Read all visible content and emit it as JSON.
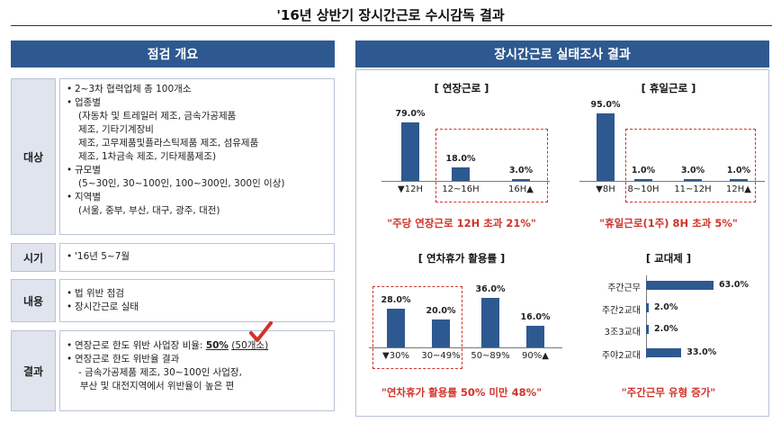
{
  "title": "'16년 상반기 장시간근로 수시감독 결과",
  "overview": {
    "header": "점검 개요",
    "sections": [
      {
        "label": "대상",
        "lines": [
          "2~3차 협력업체 총 100개소",
          "업종별",
          "(자동차 및 트레일러 제조, 금속가공제품",
          "제조, 기타기계장비",
          "제조, 고무제품및플라스틱제품 제조, 섬유제품",
          "제조, 1차금속 제조, 기타제품제조)",
          "규모별",
          "(5~30인, 30~100인, 100~300인, 300인 이상)",
          "지역별",
          "(서울, 중부, 부산, 대구, 광주, 대전)"
        ]
      },
      {
        "label": "시기",
        "lines": [
          "'16년 5~7월"
        ]
      },
      {
        "label": "내용",
        "lines": [
          "법 위반 점검",
          "장시간근로 실태"
        ]
      },
      {
        "label": "결과",
        "lines": [
          "연장근로 한도 위반 사업장 비율:",
          "50%",
          "(50개소)",
          "연장근로 한도 위반율 결과",
          "- 금속가공제품 제조, 30~100인 사업장,",
          "부산 및 대전지역에서 위반율이 높은 편"
        ]
      }
    ]
  },
  "results": {
    "header": "장시간근로 실태조사 결과"
  },
  "chart_data": [
    {
      "type": "bar",
      "title": "[ 연장근로 ]",
      "categories": [
        "▼12H",
        "12~16H",
        "16H▲"
      ],
      "values": [
        79.0,
        18.0,
        3.0
      ],
      "labels": [
        "79.0%",
        "18.0%",
        "3.0%"
      ],
      "highlight": [
        1,
        2
      ],
      "caption": "\"주당 연장근로 12H 초과 21%\""
    },
    {
      "type": "bar",
      "title": "[ 휴일근로 ]",
      "categories": [
        "▼8H",
        "8~10H",
        "11~12H",
        "12H▲"
      ],
      "values": [
        95.0,
        1.0,
        3.0,
        1.0
      ],
      "labels": [
        "95.0%",
        "1.0%",
        "3.0%",
        "1.0%"
      ],
      "highlight": [
        1,
        2,
        3
      ],
      "caption": "\"휴일근로(1주) 8H 초과 5%\""
    },
    {
      "type": "bar",
      "title": "[ 연차휴가 활용률 ]",
      "categories": [
        "▼30%",
        "30~49%",
        "50~89%",
        "90%▲"
      ],
      "values": [
        28.0,
        20.0,
        36.0,
        16.0
      ],
      "labels": [
        "28.0%",
        "20.0%",
        "36.0%",
        "16.0%"
      ],
      "highlight": [
        0,
        1
      ],
      "caption": "\"연차휴가 활용률 50% 미만 48%\""
    },
    {
      "type": "bar",
      "orientation": "horizontal",
      "title": "[ 교대제 ]",
      "categories": [
        "주간근무",
        "주간2교대",
        "3조3교대",
        "주야2교대"
      ],
      "values": [
        63.0,
        2.0,
        2.0,
        33.0
      ],
      "labels": [
        "63.0%",
        "2.0%",
        "2.0%",
        "33.0%"
      ],
      "caption": "\"주간근무 유형 증가\""
    }
  ],
  "colors": {
    "header": "#2e5990",
    "bar": "#2e5990",
    "highlight": "#d0332a",
    "label_bg": "#dfe4ee"
  },
  "icons": {
    "check": "red-check-mark-icon"
  }
}
